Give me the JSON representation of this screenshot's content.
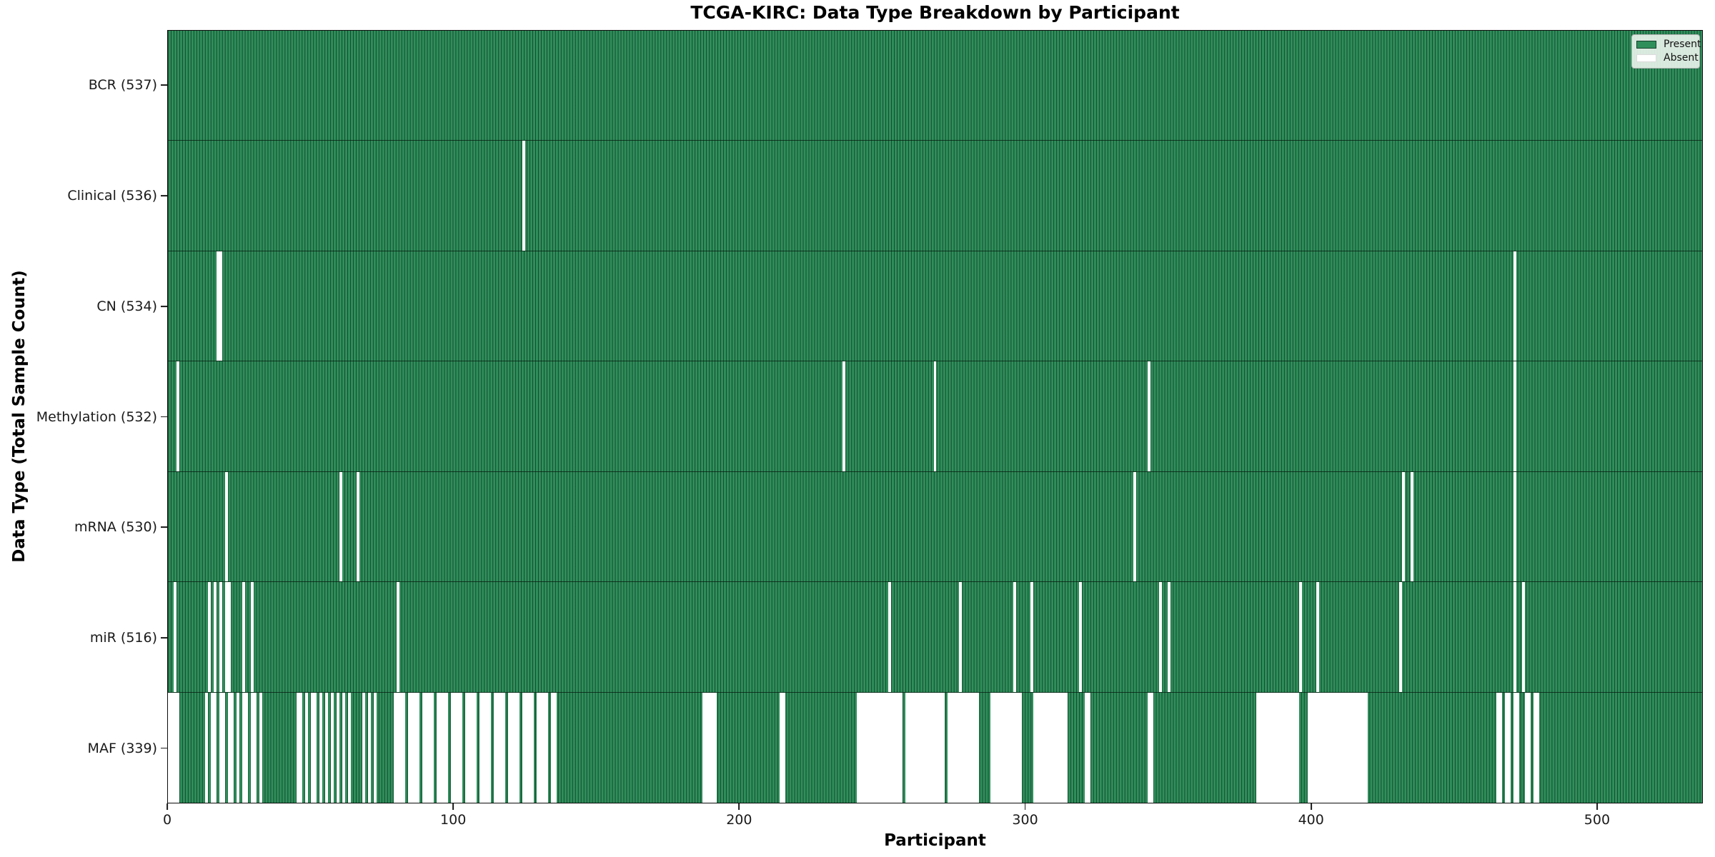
{
  "title": "TCGA-KIRC: Data Type Breakdown by Participant",
  "chart_data": {
    "type": "heatmap",
    "title": "TCGA-KIRC: Data Type Breakdown by Participant",
    "xlabel": "Participant",
    "ylabel": "Data Type (Total Sample Count)",
    "n_participants": 537,
    "x_ticks": [
      0,
      100,
      200,
      300,
      400,
      500
    ],
    "grid": false,
    "legend_position": "upper right",
    "colors": {
      "present": "#2f8f5b",
      "absent": "#ffffff",
      "bar_edge": "#14402a",
      "background": "#ffffff"
    },
    "legend": [
      {
        "label": "Present",
        "color": "#2f8f5b"
      },
      {
        "label": "Absent",
        "color": "#ffffff"
      }
    ],
    "rows": [
      {
        "name": "BCR",
        "label": "BCR (537)",
        "present_count": 537,
        "absent_ranges": []
      },
      {
        "name": "Clinical",
        "label": "Clinical (536)",
        "present_count": 536,
        "absent_ranges": [
          [
            124,
            124
          ]
        ]
      },
      {
        "name": "CN",
        "label": "CN (534)",
        "present_count": 534,
        "absent_ranges": [
          [
            17,
            18
          ],
          [
            471,
            471
          ]
        ]
      },
      {
        "name": "Methylation",
        "label": "Methylation (532)",
        "present_count": 532,
        "absent_ranges": [
          [
            3,
            3
          ],
          [
            236,
            236
          ],
          [
            268,
            268
          ],
          [
            343,
            343
          ],
          [
            471,
            471
          ]
        ]
      },
      {
        "name": "mRNA",
        "label": "mRNA (530)",
        "present_count": 530,
        "absent_ranges": [
          [
            20,
            20
          ],
          [
            60,
            60
          ],
          [
            66,
            66
          ],
          [
            338,
            338
          ],
          [
            432,
            432
          ],
          [
            435,
            435
          ],
          [
            471,
            471
          ]
        ]
      },
      {
        "name": "miR",
        "label": "miR (516)",
        "present_count": 516,
        "absent_ranges": [
          [
            2,
            2
          ],
          [
            14,
            14
          ],
          [
            16,
            16
          ],
          [
            18,
            18
          ],
          [
            20,
            21
          ],
          [
            26,
            26
          ],
          [
            29,
            29
          ],
          [
            80,
            80
          ],
          [
            252,
            252
          ],
          [
            277,
            277
          ],
          [
            296,
            296
          ],
          [
            302,
            302
          ],
          [
            319,
            319
          ],
          [
            347,
            347
          ],
          [
            350,
            350
          ],
          [
            396,
            396
          ],
          [
            402,
            402
          ],
          [
            431,
            431
          ],
          [
            471,
            471
          ],
          [
            474,
            474
          ]
        ]
      },
      {
        "name": "MAF",
        "label": "MAF (339)",
        "present_count": 339,
        "absent_ranges": [
          [
            0,
            3
          ],
          [
            13,
            13
          ],
          [
            15,
            16
          ],
          [
            18,
            19
          ],
          [
            21,
            22
          ],
          [
            24,
            24
          ],
          [
            26,
            27
          ],
          [
            29,
            30
          ],
          [
            32,
            32
          ],
          [
            45,
            46
          ],
          [
            48,
            48
          ],
          [
            50,
            51
          ],
          [
            53,
            53
          ],
          [
            55,
            55
          ],
          [
            57,
            57
          ],
          [
            59,
            59
          ],
          [
            61,
            61
          ],
          [
            63,
            63
          ],
          [
            68,
            68
          ],
          [
            70,
            70
          ],
          [
            72,
            72
          ],
          [
            79,
            82
          ],
          [
            84,
            87
          ],
          [
            89,
            92
          ],
          [
            94,
            97
          ],
          [
            99,
            102
          ],
          [
            104,
            107
          ],
          [
            109,
            112
          ],
          [
            114,
            117
          ],
          [
            119,
            122
          ],
          [
            124,
            127
          ],
          [
            129,
            132
          ],
          [
            134,
            135
          ],
          [
            187,
            191
          ],
          [
            214,
            215
          ],
          [
            241,
            256
          ],
          [
            258,
            271
          ],
          [
            273,
            283
          ],
          [
            288,
            298
          ],
          [
            303,
            314
          ],
          [
            321,
            322
          ],
          [
            343,
            344
          ],
          [
            381,
            395
          ],
          [
            399,
            419
          ],
          [
            465,
            466
          ],
          [
            468,
            469
          ],
          [
            471,
            472
          ],
          [
            475,
            476
          ],
          [
            478,
            479
          ]
        ]
      }
    ]
  }
}
